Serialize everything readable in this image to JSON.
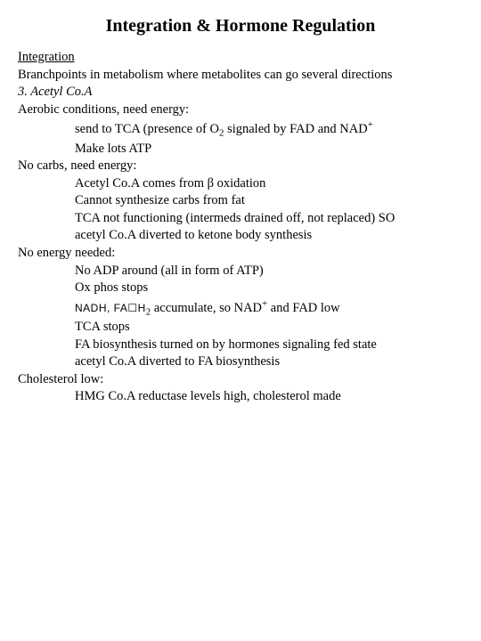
{
  "title": "Integration & Hormone Regulation",
  "h1": "Integration",
  "p1": "Branchpoints in metabolism where metabolites can go several directions",
  "p2": "3.  Acetyl Co.A",
  "s1": {
    "head": "Aerobic conditions, need energy:",
    "a_pre": "send to TCA (presence of O",
    "a_sub": "2",
    "a_post": " signaled by FAD and NAD",
    "a_sup": "+",
    "b": "Make lots ATP"
  },
  "s2": {
    "head": "No carbs, need energy:",
    "a": "Acetyl Co.A comes from β oxidation",
    "b": "Cannot synthesize carbs from fat",
    "c": "TCA not functioning (intermeds drained off, not replaced) SO",
    "d": "acetyl Co.A diverted to ketone body synthesis"
  },
  "s3": {
    "head": "No energy needed:",
    "a": "No ADP around (all in form of ATP)",
    "b": "Ox phos stops",
    "c_sp": "NADH,  FA☐H",
    "c_sub": "2",
    "c_mid": " accumulate, so NAD",
    "c_sup": "+",
    "c_post": " and FAD low",
    "d": "TCA stops",
    "e": "FA biosynthesis turned on by hormones signaling fed state",
    "f": "acetyl Co.A diverted to FA biosynthesis"
  },
  "s4": {
    "head": "Cholesterol low:",
    "a": "HMG Co.A reductase levels high, cholesterol made"
  }
}
